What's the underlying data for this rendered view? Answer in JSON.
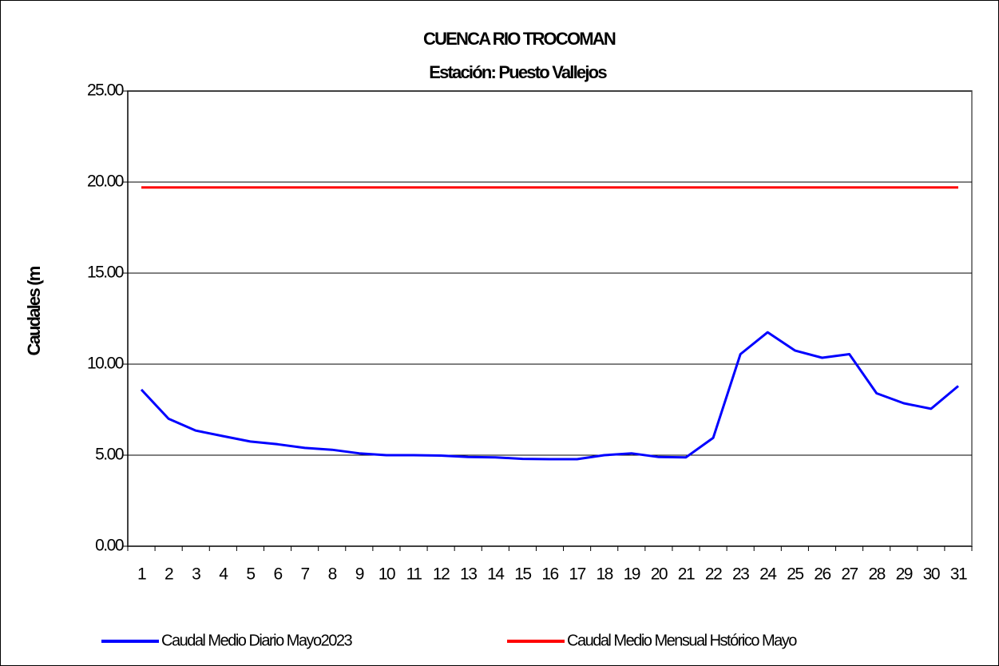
{
  "chart_data": {
    "type": "line",
    "title": "CUENCA RIO TROCOMAN",
    "subtitle": "Estación: Puesto Vallejos",
    "y_label": "Caudales (m",
    "categories": [
      "1",
      "2",
      "3",
      "4",
      "5",
      "6",
      "7",
      "8",
      "9",
      "10",
      "11",
      "12",
      "13",
      "14",
      "15",
      "16",
      "17",
      "18",
      "19",
      "20",
      "21",
      "22",
      "23",
      "24",
      "25",
      "26",
      "27",
      "28",
      "29",
      "30",
      "31"
    ],
    "series": [
      {
        "name": "Caudal Medio Diario Mayo2023",
        "color": "#0000ff",
        "values": [
          8.6,
          7.0,
          6.35,
          6.05,
          5.75,
          5.6,
          5.4,
          5.3,
          5.1,
          5.0,
          5.0,
          4.98,
          4.9,
          4.88,
          4.8,
          4.78,
          4.78,
          5.0,
          5.1,
          4.9,
          4.88,
          5.95,
          10.55,
          11.75,
          10.75,
          10.35,
          10.55,
          8.4,
          7.85,
          7.55,
          8.8
        ]
      },
      {
        "name": "Caudal Medio Mensual Hstórico Mayo",
        "color": "#ff0000",
        "values": [
          19.7,
          19.7,
          19.7,
          19.7,
          19.7,
          19.7,
          19.7,
          19.7,
          19.7,
          19.7,
          19.7,
          19.7,
          19.7,
          19.7,
          19.7,
          19.7,
          19.7,
          19.7,
          19.7,
          19.7,
          19.7,
          19.7,
          19.7,
          19.7,
          19.7,
          19.7,
          19.7,
          19.7,
          19.7,
          19.7,
          19.7
        ]
      }
    ],
    "ylim": [
      0,
      25
    ],
    "yticks": [
      {
        "value": 0,
        "label": "0.00"
      },
      {
        "value": 5,
        "label": "5.00"
      },
      {
        "value": 10,
        "label": "10.00"
      },
      {
        "value": 15,
        "label": "15.00"
      },
      {
        "value": 20,
        "label": "20.00"
      },
      {
        "value": 25,
        "label": "25.00"
      }
    ],
    "grid": true,
    "legend": "bottom"
  }
}
